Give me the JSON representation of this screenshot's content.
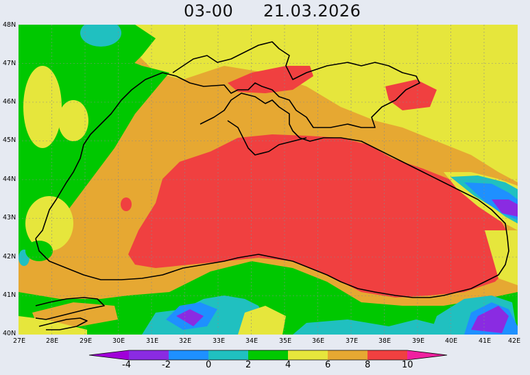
{
  "header": {
    "time": "03-00",
    "date": "21.03.2026"
  },
  "map": {
    "region": "Black Sea",
    "lon_ticks": [
      "27E",
      "28E",
      "29E",
      "30E",
      "31E",
      "32E",
      "33E",
      "34E",
      "35E",
      "36E",
      "37E",
      "38E",
      "39E",
      "40E",
      "41E",
      "42E"
    ],
    "lat_ticks": [
      "48N",
      "47N",
      "46N",
      "45N",
      "44N",
      "43N",
      "42N",
      "41N",
      "40N"
    ],
    "grid_lines": true,
    "background_color": "#e6eaf2"
  },
  "legend": {
    "labels": [
      "-4",
      "-2",
      "0",
      "2",
      "4",
      "6",
      "8",
      "10"
    ],
    "colors": [
      "#a000d8",
      "#8a2be2",
      "#1e90ff",
      "#20c0c0",
      "#00c800",
      "#e6e63c",
      "#e6a832",
      "#f04040",
      "#f020a0"
    ]
  }
}
